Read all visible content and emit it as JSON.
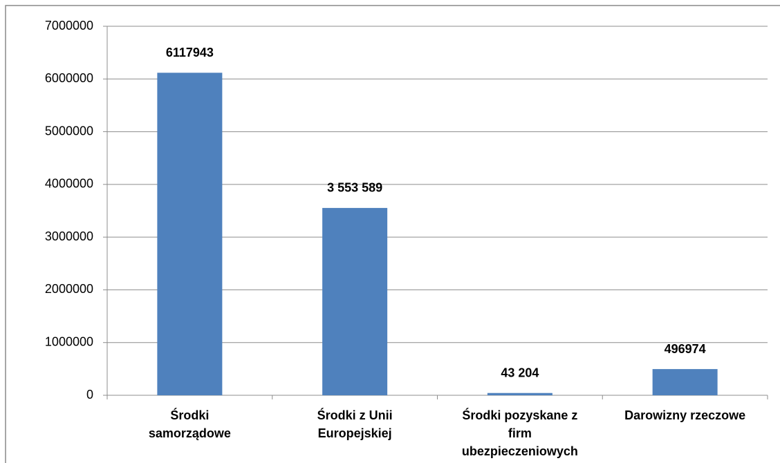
{
  "chart_data": {
    "type": "bar",
    "categories": [
      "Środki samorządowe",
      "Środki z Unii Europejskiej",
      "Środki pozyskane z firm ubezpieczeniowych",
      "Darowizny rzeczowe"
    ],
    "values": [
      6117943,
      3553589,
      43204,
      496974
    ],
    "value_labels": [
      "6117943",
      "3 553 589",
      "43 204",
      "496974"
    ],
    "color": "#4f81bd",
    "ylim": [
      0,
      7000000
    ],
    "yticks": [
      0,
      1000000,
      2000000,
      3000000,
      4000000,
      5000000,
      6000000,
      7000000
    ],
    "grid": true
  }
}
